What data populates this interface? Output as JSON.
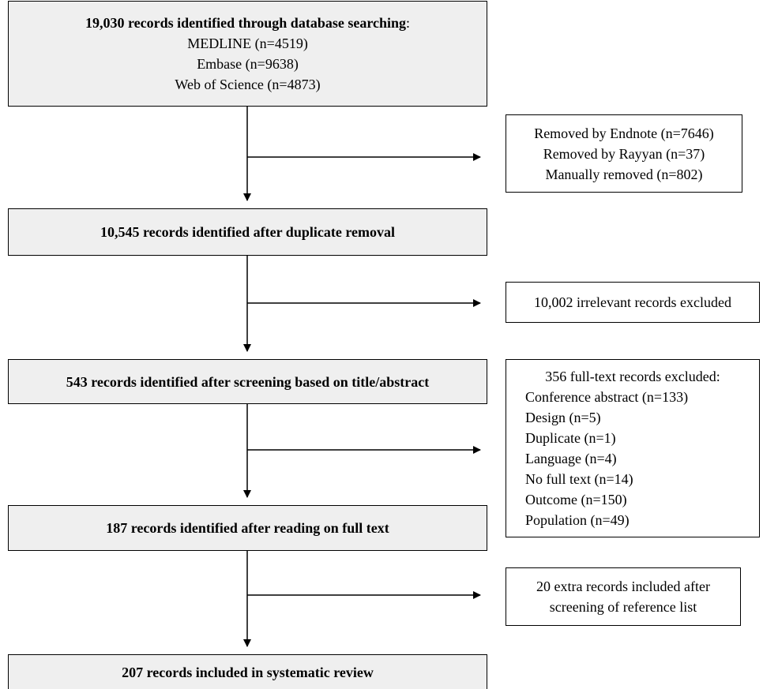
{
  "box1": {
    "title": "19,030 records identified through database searching",
    "title_suffix": ":",
    "lines": [
      "MEDLINE (n=4519)",
      "Embase (n=9638)",
      "Web of Science (n=4873)"
    ]
  },
  "removed": {
    "lines": [
      "Removed by Endnote (n=7646)",
      "Removed by Rayyan (n=37)",
      "Manually removed (n=802)"
    ]
  },
  "box2": {
    "title": "10,545 records identified after duplicate removal"
  },
  "excluded_irrelevant": {
    "text": "10,002 irrelevant records excluded"
  },
  "box3": {
    "title": "543 records identified after screening based on title/abstract"
  },
  "fulltext_excluded": {
    "title": "356 full-text records excluded:",
    "items": [
      "Conference abstract (n=133)",
      "Design (n=5)",
      "Duplicate (n=1)",
      "Language (n=4)",
      "No full text (n=14)",
      "Outcome (n=150)",
      "Population (n=49)"
    ]
  },
  "box4": {
    "title": "187 records identified after reading on full text"
  },
  "extra_included": {
    "lines": [
      "20 extra records included after",
      "screening of reference list"
    ]
  },
  "box5": {
    "title": "207 records included in systematic review"
  }
}
